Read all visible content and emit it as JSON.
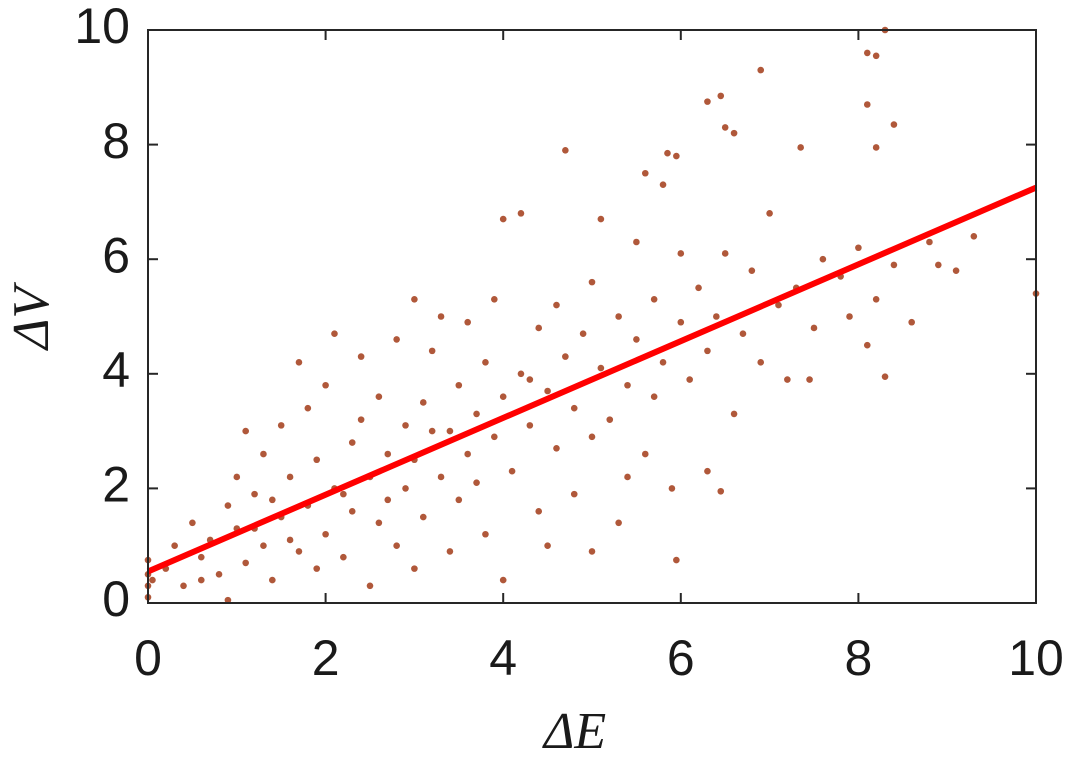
{
  "chart_data": {
    "type": "scatter",
    "xlabel": "ΔE",
    "ylabel": "ΔV",
    "xlim": [
      0,
      10
    ],
    "ylim": [
      0,
      10
    ],
    "xticks": [
      0,
      2,
      4,
      6,
      8,
      10
    ],
    "yticks": [
      0,
      2,
      4,
      6,
      8,
      10
    ],
    "series": [
      {
        "type": "scatter",
        "color": "#b0583a",
        "x": [
          0,
          0,
          0,
          0,
          0.05,
          0.2,
          0.3,
          0.4,
          0.5,
          0.6,
          0.7,
          0.8,
          0.9,
          0.9,
          1.0,
          1.0,
          0.6,
          1.1,
          1.2,
          1.3,
          1.3,
          1.4,
          1.5,
          1.5,
          1.6,
          1.7,
          1.7,
          1.8,
          1.8,
          1.9,
          1.9,
          2.0,
          2.0,
          1.2,
          1.4,
          1.6,
          1.1,
          2.1,
          2.1,
          2.2,
          2.3,
          2.3,
          2.4,
          2.4,
          2.5,
          2.5,
          2.6,
          2.6,
          2.7,
          2.8,
          2.8,
          2.9,
          2.9,
          3.0,
          3.0,
          3.0,
          2.2,
          2.7,
          3.1,
          3.1,
          3.2,
          3.3,
          3.3,
          3.4,
          3.4,
          3.5,
          3.5,
          3.6,
          3.6,
          3.7,
          3.8,
          3.8,
          3.9,
          3.9,
          4.0,
          4.0,
          4.0,
          3.2,
          3.7,
          4.1,
          4.2,
          4.2,
          4.3,
          4.4,
          4.4,
          4.5,
          4.6,
          4.6,
          4.7,
          4.7,
          4.8,
          4.8,
          4.9,
          5.0,
          5.0,
          5.0,
          4.3,
          4.5,
          5.1,
          5.1,
          5.2,
          5.3,
          5.3,
          5.4,
          5.5,
          5.5,
          5.6,
          5.7,
          5.7,
          5.8,
          5.8,
          5.9,
          6.0,
          6.0,
          5.4,
          5.6,
          6.1,
          6.2,
          6.3,
          6.3,
          6.4,
          6.5,
          6.6,
          6.7,
          6.8,
          6.9,
          7.0,
          7.1,
          7.2,
          7.3,
          7.5,
          7.6,
          7.8,
          7.9,
          8.0,
          8.2,
          8.4,
          8.6,
          8.8,
          8.9,
          9.1,
          9.3,
          8.1,
          8.3,
          8.1,
          8.2,
          6.9,
          8.1,
          6.3,
          6.45,
          8.4,
          6.5,
          6.6,
          7.35,
          8.2,
          5.85,
          5.95,
          10,
          6.45,
          5.95,
          8.3,
          7.45
        ],
        "values": [
          0.1,
          0.3,
          0.5,
          0.75,
          0.4,
          0.6,
          1.0,
          0.3,
          1.4,
          0.8,
          1.1,
          0.5,
          1.7,
          0.05,
          1.3,
          2.2,
          0.4,
          0.7,
          1.9,
          2.6,
          1.0,
          0.4,
          3.1,
          1.5,
          2.2,
          4.2,
          0.9,
          1.7,
          3.4,
          2.5,
          0.6,
          1.2,
          3.8,
          1.3,
          1.8,
          1.1,
          3.0,
          2.0,
          4.7,
          0.8,
          2.8,
          1.6,
          4.3,
          3.2,
          2.2,
          0.3,
          1.4,
          3.6,
          2.6,
          4.6,
          1.0,
          2.0,
          3.1,
          5.3,
          0.6,
          2.5,
          1.9,
          1.8,
          3.5,
          1.5,
          4.4,
          2.2,
          5.0,
          3.0,
          0.9,
          3.8,
          1.8,
          4.9,
          2.6,
          3.3,
          1.2,
          4.2,
          2.9,
          5.3,
          3.6,
          6.7,
          0.4,
          3.0,
          2.1,
          2.3,
          4.0,
          6.8,
          3.1,
          4.8,
          1.6,
          3.7,
          2.7,
          5.2,
          4.3,
          7.9,
          1.9,
          3.4,
          4.7,
          2.9,
          5.6,
          0.9,
          3.9,
          1.0,
          4.1,
          6.7,
          3.2,
          5.0,
          1.4,
          3.8,
          4.6,
          6.3,
          2.6,
          5.3,
          3.6,
          4.2,
          7.3,
          2.0,
          4.9,
          6.1,
          2.2,
          7.5,
          3.9,
          5.5,
          4.4,
          2.3,
          5.0,
          6.1,
          3.3,
          4.7,
          5.8,
          4.2,
          6.8,
          5.2,
          3.9,
          5.5,
          4.8,
          6.0,
          5.7,
          5.0,
          6.2,
          5.3,
          5.9,
          4.9,
          6.3,
          5.9,
          5.8,
          6.4,
          4.5,
          10,
          9.6,
          9.55,
          9.3,
          8.7,
          8.75,
          8.85,
          8.35,
          8.3,
          8.2,
          7.95,
          7.95,
          7.85,
          7.8,
          5.4,
          1.95,
          0.75,
          3.95,
          3.9
        ]
      },
      {
        "type": "line",
        "color": "#ff0000",
        "x": [
          0,
          10
        ],
        "values": [
          0.55,
          7.25
        ]
      }
    ]
  }
}
